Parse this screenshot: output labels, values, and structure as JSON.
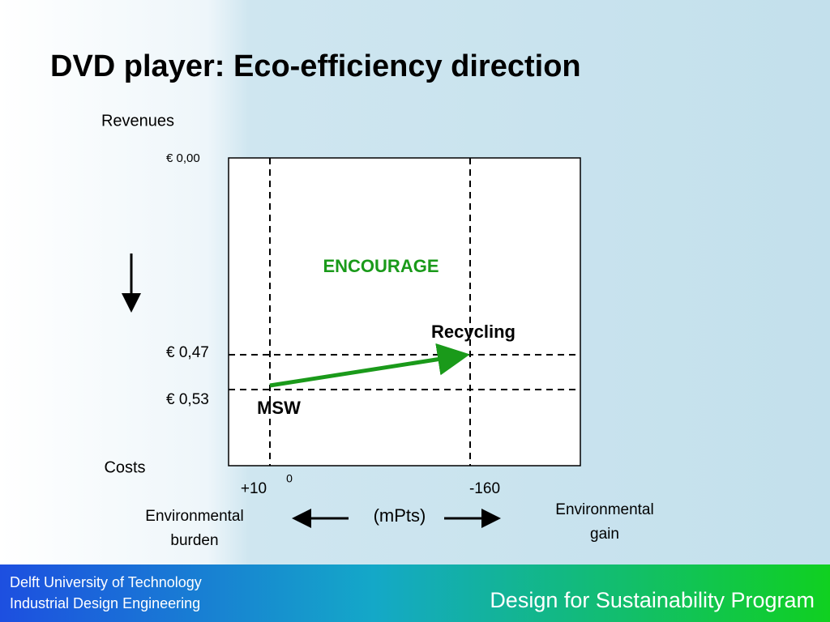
{
  "title": "DVD player: Eco-efficiency direction",
  "diagram": {
    "y_axis_label": "Revenues",
    "y_bottom_label": "Costs",
    "levels": [
      "€ 0,00",
      "€ 0,47",
      "€ 0,53"
    ],
    "x_labels": [
      "+10",
      "0",
      "-160"
    ],
    "zone_label": "ENCOURAGE",
    "points": [
      {
        "label": "MSW"
      },
      {
        "label": "Recycling"
      }
    ],
    "unit": "(mPts)",
    "left_label": [
      "Environmental",
      "burden"
    ],
    "right_label": [
      "Environmental",
      "gain"
    ]
  },
  "footer": {
    "org": [
      "Delft University of Technology",
      "Industrial Design Engineering"
    ],
    "program": "Design for Sustainability Program"
  }
}
